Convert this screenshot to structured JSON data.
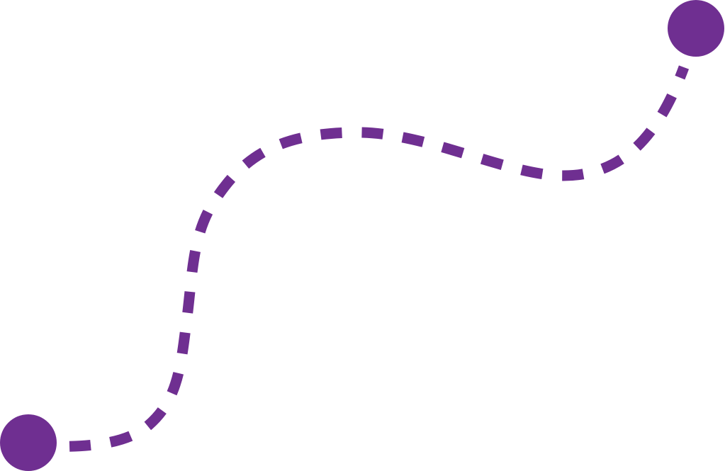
{
  "colors": {
    "background": "#ffffff",
    "path": "#6f2f91",
    "endpoint": "#6f2f91"
  },
  "elements": {
    "path": "dashed-route",
    "start": "start-point",
    "end": "end-point"
  }
}
